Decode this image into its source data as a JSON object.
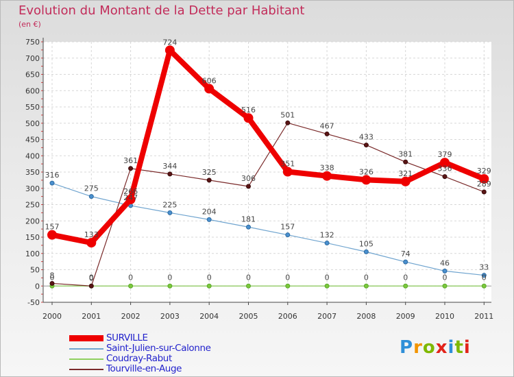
{
  "title": "Evolution du Montant de la Dette par Habitant",
  "subtitle": "(en €)",
  "logo": {
    "letters": [
      "P",
      "r",
      "o",
      "x",
      "i",
      "t",
      "i"
    ],
    "colors": [
      "#2f8fd8",
      "#f29400",
      "#7fb800",
      "#e2231a",
      "#2f8fd8",
      "#7fb800",
      "#e2231a"
    ]
  },
  "chart_data": {
    "type": "line",
    "categories": [
      "2000",
      "2001",
      "2002",
      "2003",
      "2004",
      "2005",
      "2006",
      "2007",
      "2008",
      "2009",
      "2010",
      "2011"
    ],
    "ylim": [
      -50,
      750
    ],
    "yticks": [
      -50,
      0,
      50,
      100,
      150,
      200,
      250,
      300,
      350,
      400,
      450,
      500,
      550,
      600,
      650,
      700,
      750
    ],
    "series": [
      {
        "name": "SURVILLE",
        "color": "#ee0000",
        "values": [
          157,
          133,
          266,
          724,
          606,
          516,
          351,
          338,
          326,
          321,
          379,
          329
        ]
      },
      {
        "name": "Saint-Julien-sur-Calonne",
        "color": "#6fa4cf",
        "values": [
          316,
          275,
          247,
          225,
          204,
          181,
          157,
          132,
          105,
          74,
          46,
          33
        ]
      },
      {
        "name": "Coudray-Rabut",
        "color": "#8fd05e",
        "values": [
          0,
          0,
          0,
          0,
          0,
          0,
          0,
          0,
          0,
          0,
          0,
          0
        ]
      },
      {
        "name": "Tourville-en-Auge",
        "color": "#7a2a2a",
        "values": [
          8,
          0,
          361,
          344,
          325,
          306,
          501,
          467,
          433,
          381,
          336,
          289
        ]
      }
    ]
  }
}
